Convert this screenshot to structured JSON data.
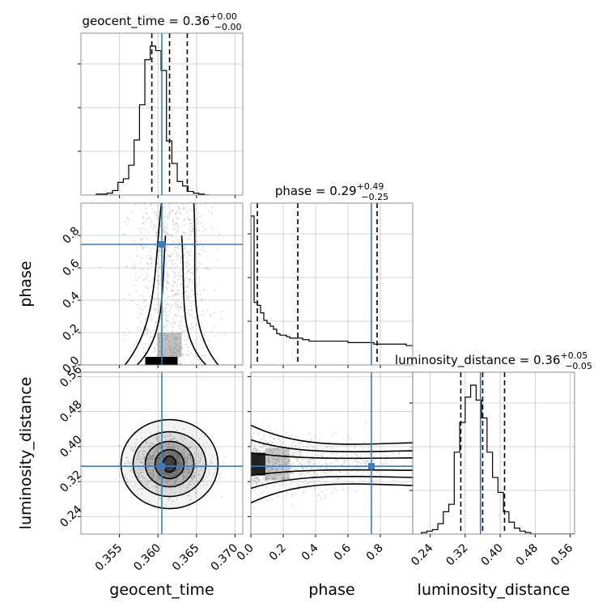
{
  "params": [
    "geocent_time",
    "phase",
    "luminosity_distance"
  ],
  "colors": {
    "truth": "#3b7bbf",
    "hist": "#000000",
    "grid": "#c8c8c8",
    "density": "#000000"
  },
  "chart_data": {
    "type": "corner",
    "grid": true,
    "diag_titles": [
      {
        "param": "geocent_time",
        "prefix": "geocent_time = 0.36",
        "sup": "+0.00",
        "sub": "−0.00"
      },
      {
        "param": "phase",
        "prefix": "phase = 0.29",
        "sup": "+0.49",
        "sub": "−0.25"
      },
      {
        "param": "luminosity_distance",
        "prefix": "luminosity_distance = 0.36",
        "sup": "+0.05",
        "sub": "−0.05"
      }
    ],
    "axes": {
      "geocent_time": {
        "label": "geocent_time",
        "range": [
          0.35,
          0.371
        ],
        "ticks": [
          0.355,
          0.36,
          0.365,
          0.37
        ],
        "tick_labels": [
          "0.355",
          "0.360",
          "0.365",
          "0.370"
        ]
      },
      "phase": {
        "label": "phase",
        "range": [
          0.0,
          1.0
        ],
        "ticks": [
          0.0,
          0.2,
          0.4,
          0.6,
          0.8
        ],
        "tick_labels": [
          "0.0",
          "0.2",
          "0.4",
          "0.6",
          "0.8"
        ]
      },
      "luminosity_distance": {
        "label": "luminosity_distance",
        "range": [
          0.2,
          0.57
        ],
        "ticks": [
          0.24,
          0.32,
          0.4,
          0.48,
          0.56
        ],
        "tick_labels": [
          "0.24",
          "0.32",
          "0.40",
          "0.48",
          "0.56"
        ]
      }
    },
    "truths": {
      "geocent_time": 0.3605,
      "phase": 0.745,
      "luminosity_distance": 0.355
    },
    "quantiles": {
      "geocent_time": [
        0.3592,
        0.3615,
        0.3638
      ],
      "phase": [
        0.04,
        0.29,
        0.78
      ],
      "luminosity_distance": [
        0.31,
        0.36,
        0.41
      ]
    },
    "histograms": {
      "geocent_time": {
        "start": 0.352,
        "width": 0.0007,
        "counts": [
          1,
          1,
          2,
          5,
          14,
          18,
          33,
          61,
          100,
          150,
          165,
          160,
          138,
          60,
          35,
          15,
          10,
          4,
          2,
          1,
          0
        ]
      },
      "phase": {
        "start": 0.0,
        "width": 0.02,
        "counts": [
          100,
          42,
          40,
          35,
          30,
          28,
          26,
          24,
          21,
          20,
          20,
          19,
          18,
          18,
          18,
          18,
          17,
          17,
          16,
          16,
          16,
          16,
          16,
          16,
          16,
          16,
          16,
          16,
          16,
          16,
          15,
          15,
          15,
          15,
          15,
          15,
          15,
          15,
          14,
          14,
          14,
          14,
          14,
          14,
          14,
          14,
          14,
          14,
          13,
          13,
          13,
          14,
          14,
          14,
          14,
          14,
          14,
          14,
          14,
          14,
          14,
          14,
          14,
          14,
          14,
          14,
          14,
          14,
          14,
          14,
          12,
          12,
          12,
          12,
          12,
          15,
          15,
          15,
          15,
          15,
          17,
          17,
          17,
          17,
          17,
          17,
          17,
          17,
          17,
          17,
          17,
          19,
          19,
          19,
          19,
          19,
          19,
          19,
          19,
          19
        ]
      },
      "luminosity_distance": {
        "start": 0.22,
        "width": 0.0125,
        "counts": [
          1,
          2,
          3,
          7,
          15,
          20,
          55,
          75,
          92,
          100,
          90,
          78,
          55,
          38,
          28,
          15,
          8,
          4,
          2,
          1,
          0,
          0,
          0,
          0,
          0,
          0,
          0,
          0
        ]
      }
    }
  }
}
